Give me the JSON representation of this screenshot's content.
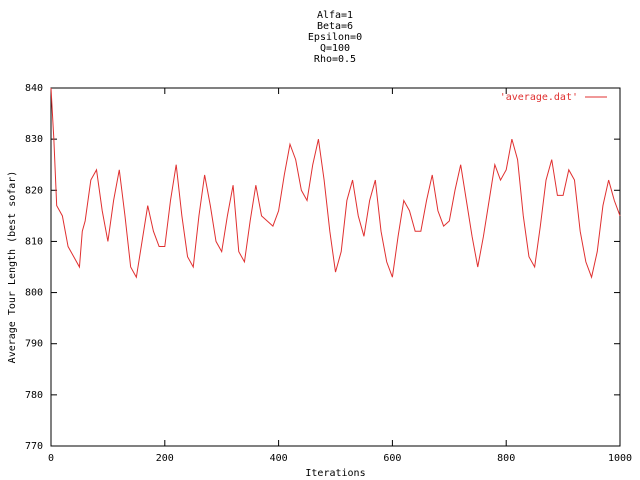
{
  "chart_data": {
    "type": "line",
    "title_lines": [
      "Alfa=1",
      "Beta=6",
      "Epsilon=0",
      "Q=100",
      "Rho=0.5"
    ],
    "xlabel": "Iterations",
    "ylabel": "Average Tour Length (best sofar)",
    "x": [
      0,
      5,
      10,
      20,
      30,
      40,
      50,
      55,
      60,
      70,
      80,
      90,
      100,
      110,
      120,
      130,
      140,
      150,
      160,
      170,
      180,
      190,
      200,
      210,
      220,
      230,
      240,
      250,
      260,
      270,
      280,
      290,
      300,
      310,
      320,
      330,
      340,
      350,
      360,
      370,
      380,
      390,
      400,
      410,
      420,
      430,
      440,
      450,
      460,
      470,
      480,
      490,
      500,
      510,
      520,
      530,
      540,
      550,
      560,
      570,
      580,
      590,
      600,
      610,
      620,
      630,
      640,
      650,
      660,
      670,
      680,
      690,
      700,
      710,
      720,
      730,
      740,
      750,
      760,
      770,
      780,
      790,
      800,
      810,
      820,
      830,
      840,
      850,
      860,
      870,
      880,
      890,
      900,
      910,
      920,
      930,
      940,
      950,
      960,
      970,
      980,
      990,
      1000
    ],
    "series": [
      {
        "name": "'average.dat'",
        "color": "#e03030",
        "values": [
          840,
          830,
          817,
          815,
          809,
          807,
          805,
          812,
          814,
          822,
          824,
          816,
          810,
          818,
          824,
          815,
          805,
          803,
          810,
          817,
          812,
          809,
          809,
          818,
          825,
          815,
          807,
          805,
          815,
          823,
          817,
          810,
          808,
          815,
          821,
          808,
          806,
          814,
          821,
          815,
          814,
          813,
          816,
          823,
          829,
          826,
          820,
          818,
          825,
          830,
          822,
          812,
          804,
          808,
          818,
          822,
          815,
          811,
          818,
          822,
          812,
          806,
          803,
          811,
          818,
          816,
          812,
          812,
          818,
          823,
          816,
          813,
          814,
          820,
          825,
          818,
          811,
          805,
          811,
          818,
          825,
          822,
          824,
          830,
          826,
          815,
          807,
          805,
          813,
          822,
          826,
          819,
          819,
          824,
          822,
          812,
          806,
          803,
          808,
          817,
          822,
          818,
          815
        ]
      }
    ],
    "xlim": [
      0,
      1000
    ],
    "xticks": [
      0,
      200,
      400,
      600,
      800,
      1000
    ],
    "ylim": [
      770,
      840
    ],
    "yticks": [
      770,
      780,
      790,
      800,
      810,
      820,
      830,
      840
    ],
    "legend": "top-right"
  }
}
